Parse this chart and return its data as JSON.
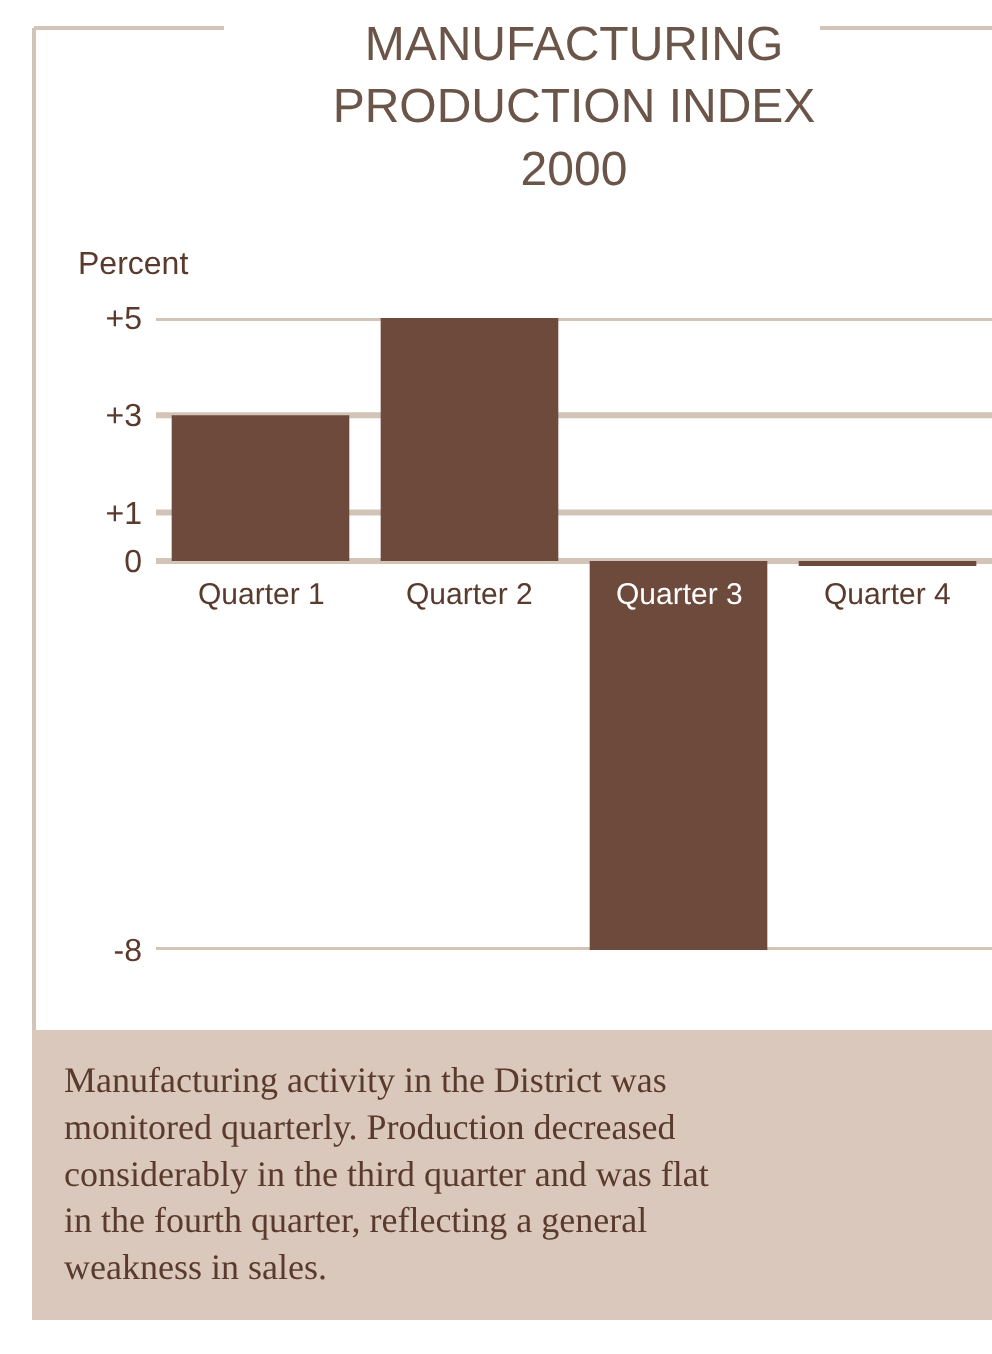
{
  "chart_data": {
    "type": "bar",
    "title": "MANUFACTURING\nPRODUCTION INDEX\n2000",
    "ylabel": "Percent",
    "categories": [
      "Quarter 1",
      "Quarter 2",
      "Quarter 3",
      "Quarter 4"
    ],
    "values": [
      3,
      5,
      -8,
      -0.1
    ],
    "color": "#6e4a3c",
    "ylim": [
      -8,
      5
    ],
    "yticks": [
      {
        "value": 5,
        "label": "+5"
      },
      {
        "value": 3,
        "label": "+3"
      },
      {
        "value": 1,
        "label": "+1"
      },
      0,
      -8
    ],
    "grid": "y",
    "legend": false,
    "annotations": [
      "Manufacturing activity in the District was monitored quarterly. Production decreased considerably in the third quarter and was flat in the fourth quarter, reflecting a general weakness in sales."
    ]
  }
}
